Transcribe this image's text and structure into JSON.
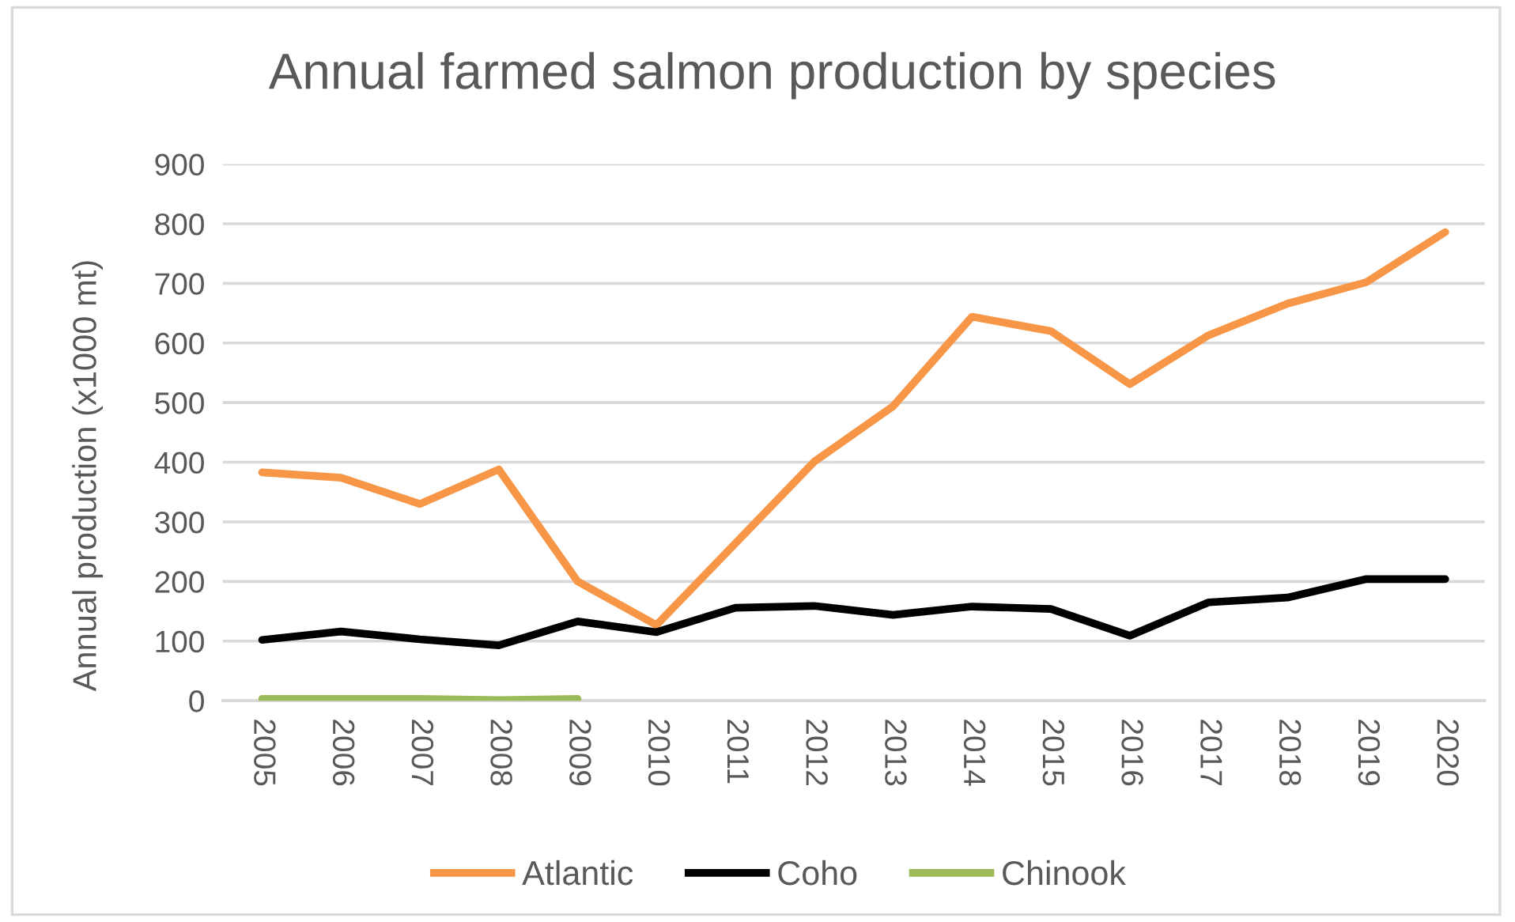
{
  "chart_data": {
    "type": "line",
    "title": "Annual farmed salmon production by species",
    "ylabel": "Annual production (x1000 mt)",
    "categories": [
      "2005",
      "2006",
      "2007",
      "2008",
      "2009",
      "2010",
      "2011",
      "2012",
      "2013",
      "2014",
      "2015",
      "2016",
      "2017",
      "2018",
      "2019",
      "2020"
    ],
    "series": [
      {
        "name": "Atlantic",
        "color": "#f79646",
        "values": [
          383,
          374,
          330,
          388,
          200,
          127,
          264,
          401,
          494,
          644,
          620,
          531,
          613,
          666,
          702,
          786
        ]
      },
      {
        "name": "Coho",
        "color": "#000000",
        "values": [
          102,
          116,
          103,
          93,
          133,
          115,
          156,
          159,
          144,
          158,
          154,
          109,
          165,
          173,
          204,
          204
        ]
      },
      {
        "name": "Chinook",
        "color": "#9bbb59",
        "values": [
          3,
          3,
          3,
          1,
          3,
          null,
          null,
          null,
          null,
          null,
          null,
          null,
          null,
          null,
          null,
          null
        ]
      }
    ],
    "ylim": [
      0,
      900
    ],
    "yticks": [
      0,
      100,
      200,
      300,
      400,
      500,
      600,
      700,
      800,
      900
    ],
    "grid": "y",
    "legend": "bottom",
    "marker": "none",
    "line_style": "solid"
  }
}
